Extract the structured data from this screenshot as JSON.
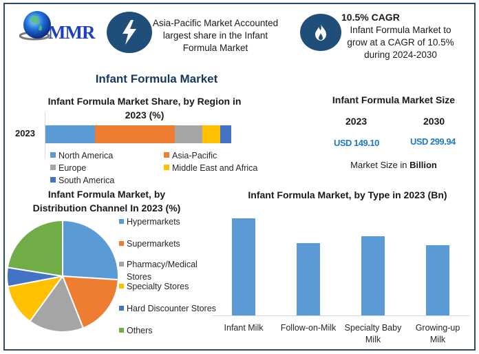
{
  "header": {
    "logo_text": "MMR",
    "badge1_icon": "lightning-icon",
    "badge1_text": [
      "Asia-Pacific Market Accounted",
      "largest share in the Infant",
      "Formula Market"
    ],
    "badge2_icon": "flame-icon",
    "badge2_title": "10.5% CAGR",
    "badge2_text": [
      "Infant Formula Market to",
      "grow at a CAGR of 10.5%",
      "during 2024-2030"
    ],
    "badge_color": "#1f4e79"
  },
  "main_title": "Infant Formula Market",
  "market_size": {
    "title": "Infant Formula Market Size",
    "years": [
      "2023",
      "2030"
    ],
    "values": [
      "USD 149.10",
      "USD 299.94"
    ],
    "note_prefix": "Market Size in ",
    "note_bold": "Billion"
  },
  "chart_data": [
    {
      "type": "bar",
      "orientation": "horizontal-stacked",
      "title": "Infant Formula Market Share, by Region in 2023 (%)",
      "title_lines": [
        "Infant Formula Market Share, by Region in",
        "2023 (%)"
      ],
      "categories": [
        "2023"
      ],
      "series": [
        {
          "name": "North America",
          "values": [
            26.7
          ],
          "color": "#5b9bd5"
        },
        {
          "name": "Asia-Pacific",
          "values": [
            43.0
          ],
          "color": "#ed7d31"
        },
        {
          "name": "Europe",
          "values": [
            14.8
          ],
          "color": "#a5a5a5"
        },
        {
          "name": "Middle East and Africa",
          "values": [
            9.6
          ],
          "color": "#ffc000"
        },
        {
          "name": "South America",
          "values": [
            5.9
          ],
          "color": "#4472c4"
        }
      ],
      "xlabel": "",
      "ylabel": "",
      "legend_position": "bottom",
      "grid": false
    },
    {
      "type": "pie",
      "title": "Infant Formula Market, by Distribution Channel In 2023 (%)",
      "title_lines": [
        "Infant Formula Market, by",
        "Distribution Channel In 2023 (%)"
      ],
      "categories": [
        "Hypermarkets",
        "Supermarkets",
        "Pharmacy/Medical Stores",
        "Specialty Stores",
        "Hard Discounter Stores",
        "Others"
      ],
      "legend_lines": [
        [
          "Hypermarkets"
        ],
        [
          "Supermarkets"
        ],
        [
          "Pharmacy/Medical",
          "Stores"
        ],
        [
          "Specialty Stores"
        ],
        [
          "Hard Discounter Stores"
        ],
        [
          "Others"
        ]
      ],
      "values": [
        26.0,
        18.0,
        16.0,
        12.0,
        5.5,
        22.5
      ],
      "colors": [
        "#5b9bd5",
        "#ed7d31",
        "#a5a5a5",
        "#ffc000",
        "#4472c4",
        "#70ad47"
      ],
      "legend_position": "right"
    },
    {
      "type": "bar",
      "title": "Infant Formula Market, by Type in 2023 (Bn)",
      "categories": [
        "Infant Milk",
        "Follow-on-Milk",
        "Specialty Baby Milk",
        "Growing-up Milk"
      ],
      "category_lines": [
        [
          "Infant Milk"
        ],
        [
          "Follow-on-Milk"
        ],
        [
          "Specialty Baby",
          "Milk"
        ],
        [
          "Growing-up",
          "Milk"
        ]
      ],
      "values": [
        141,
        105,
        115,
        102
      ],
      "value_note": "relative bar heights (no axis scale shown)",
      "color": "#5b9bd5",
      "xlabel": "",
      "ylabel": "",
      "grid": false
    }
  ]
}
